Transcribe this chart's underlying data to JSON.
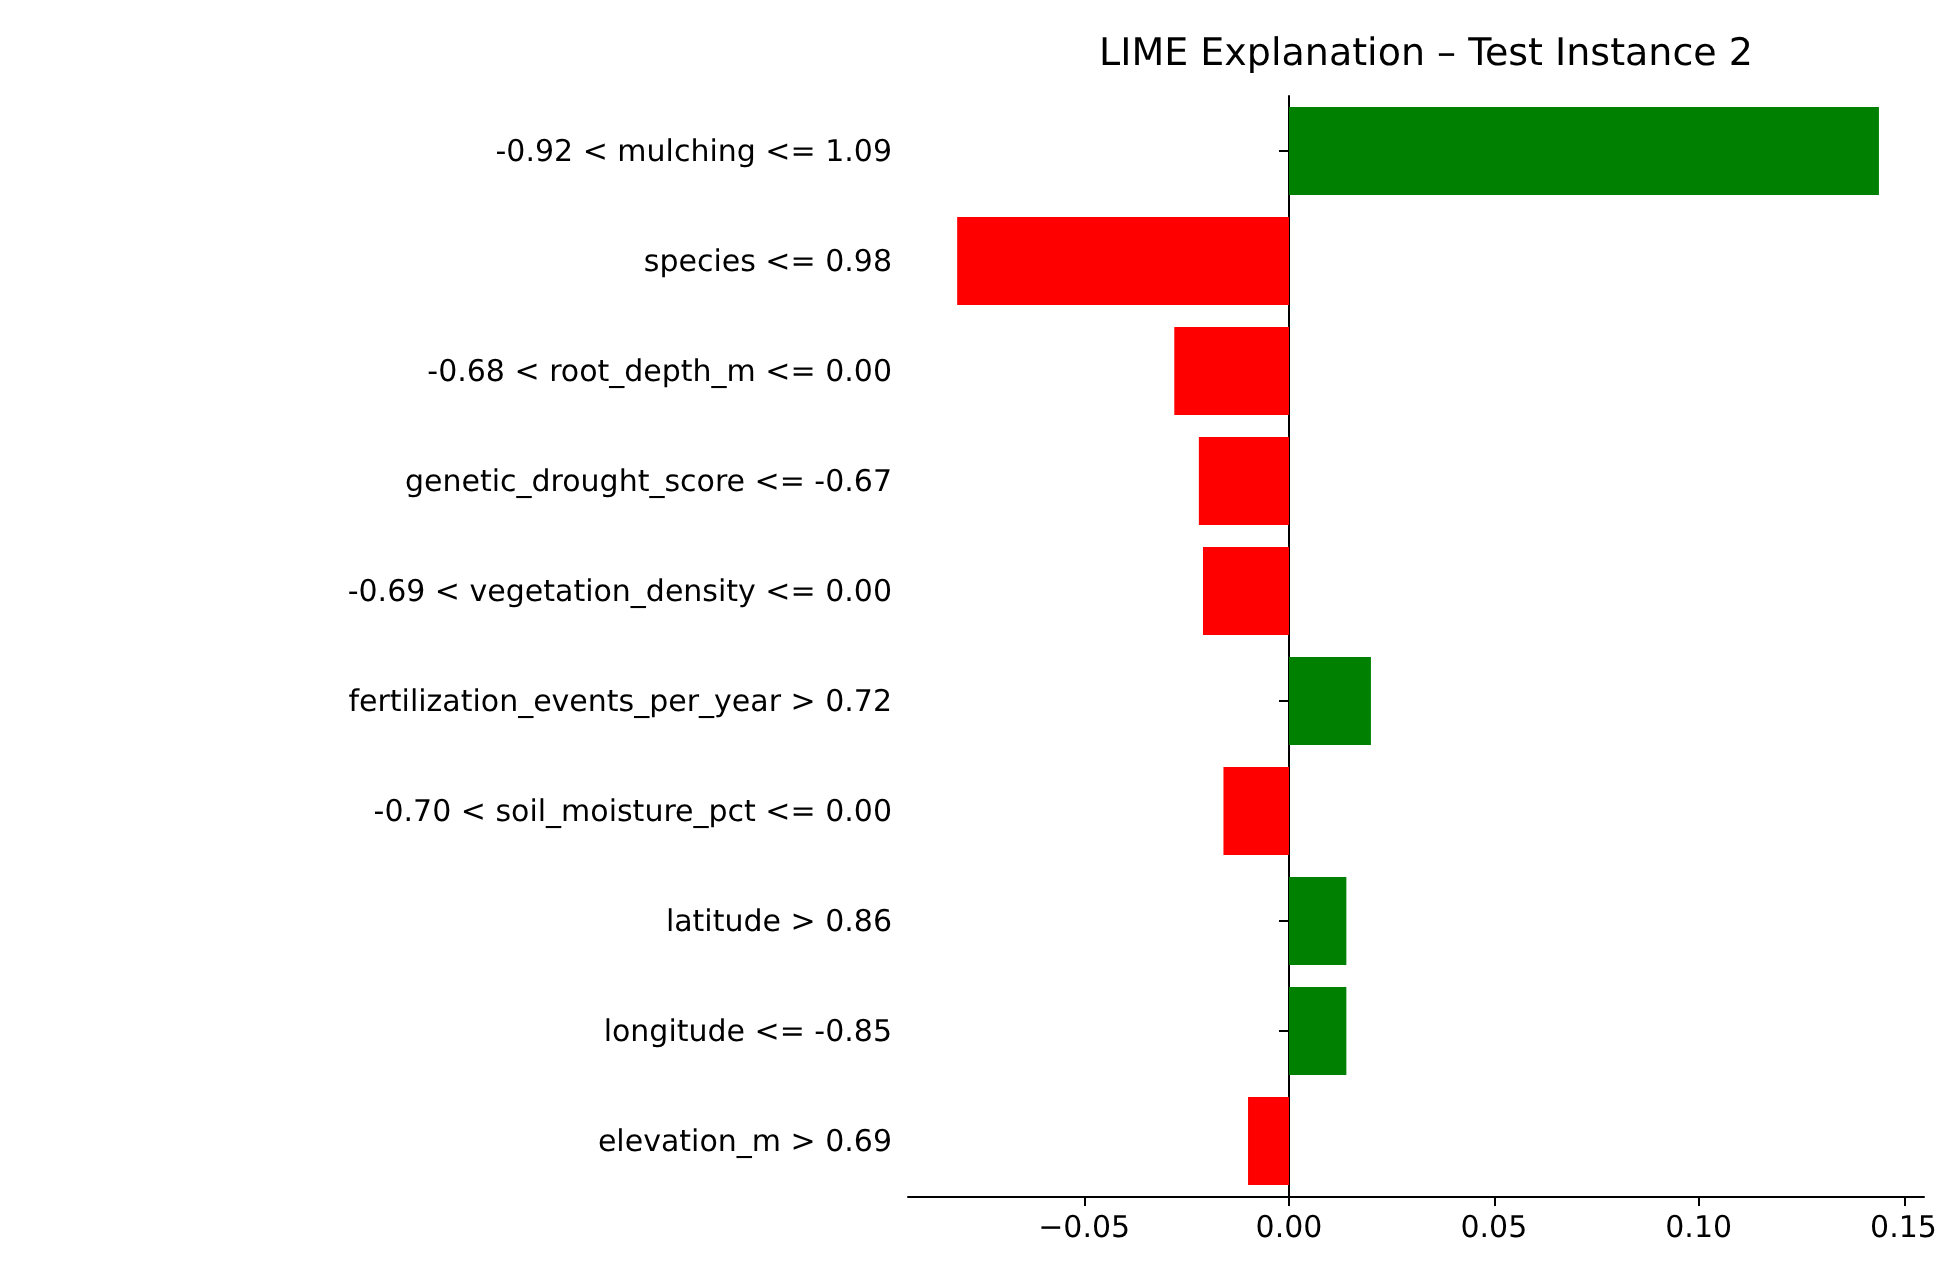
{
  "chart_data": {
    "type": "bar",
    "orientation": "horizontal",
    "title": "LIME Explanation – Test Instance 2",
    "categories": [
      "-0.92 < mulching <= 1.09",
      "species <= 0.98",
      "-0.68 < root_depth_m <= 0.00",
      "genetic_drought_score <= -0.67",
      "-0.69 < vegetation_density <= 0.00",
      "fertilization_events_per_year > 0.72",
      "-0.70 < soil_moisture_pct <= 0.00",
      "latitude > 0.86",
      "longitude <= -0.85",
      "elevation_m > 0.69"
    ],
    "values": [
      0.144,
      -0.081,
      -0.028,
      -0.022,
      -0.021,
      0.02,
      -0.016,
      0.014,
      0.014,
      -0.01
    ],
    "colors": [
      "#008000",
      "#ff0000",
      "#ff0000",
      "#ff0000",
      "#ff0000",
      "#008000",
      "#ff0000",
      "#008000",
      "#008000",
      "#ff0000"
    ],
    "xlim": [
      -0.093,
      0.155
    ],
    "xticks": [
      {
        "value": -0.05,
        "label": "−0.05"
      },
      {
        "value": 0,
        "label": "0.00"
      },
      {
        "value": 0.05,
        "label": "0.05"
      },
      {
        "value": 0.1,
        "label": "0.10"
      },
      {
        "value": 0.15,
        "label": "0.15"
      }
    ]
  }
}
